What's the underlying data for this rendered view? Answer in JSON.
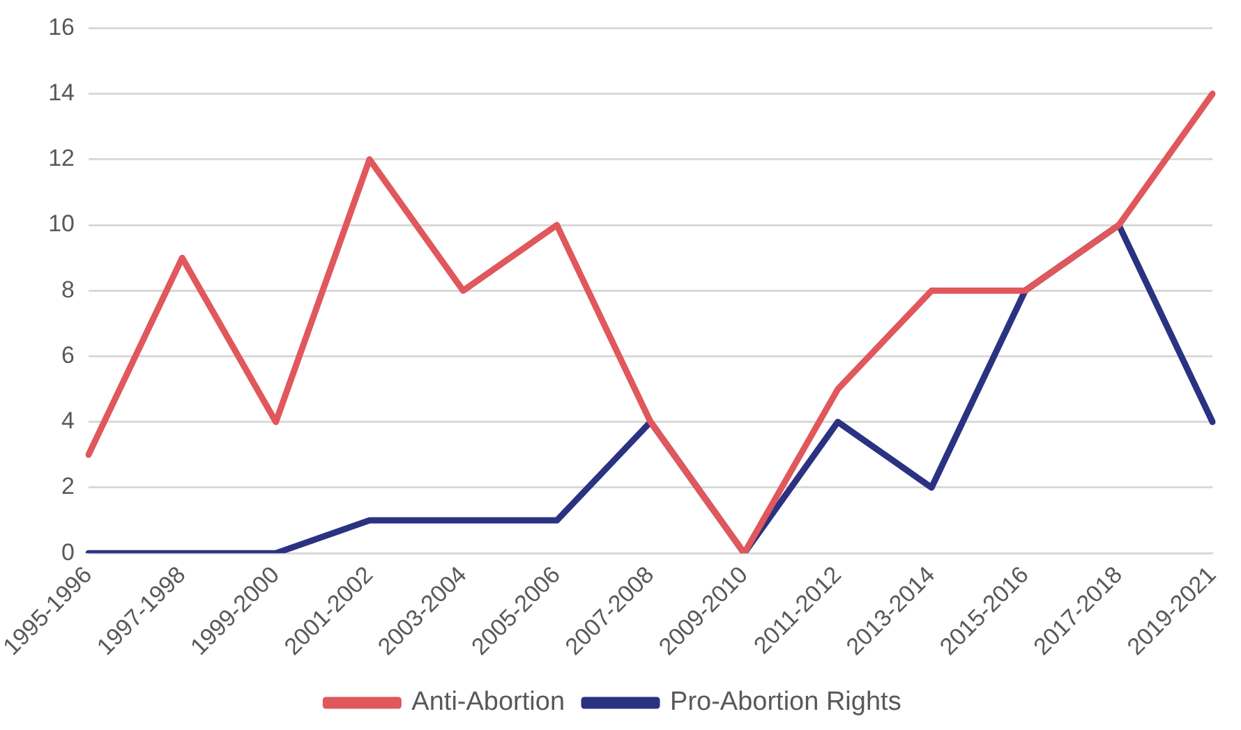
{
  "chart_data": {
    "type": "line",
    "categories": [
      "1995-1996",
      "1997-1998",
      "1999-2000",
      "2001-2002",
      "2003-2004",
      "2005-2006",
      "2007-2008",
      "2009-2010",
      "2011-2012",
      "2013-2014",
      "2015-2016",
      "2017-2018",
      "2019-2021"
    ],
    "series": [
      {
        "name": "Anti-Abortion",
        "color": "#e0575c",
        "values": [
          3,
          9,
          4,
          12,
          8,
          10,
          4,
          0,
          5,
          8,
          8,
          10,
          14
        ]
      },
      {
        "name": "Pro-Abortion Rights",
        "color": "#2b3282",
        "values": [
          0,
          0,
          0,
          1,
          1,
          1,
          4,
          0,
          4,
          2,
          8,
          10,
          4
        ]
      }
    ],
    "ylim": [
      0,
      16
    ],
    "yticks": [
      0,
      2,
      4,
      6,
      8,
      10,
      12,
      14,
      16
    ],
    "grid": "y",
    "legend": "bottom",
    "marker": "none",
    "line_style": "solid"
  }
}
